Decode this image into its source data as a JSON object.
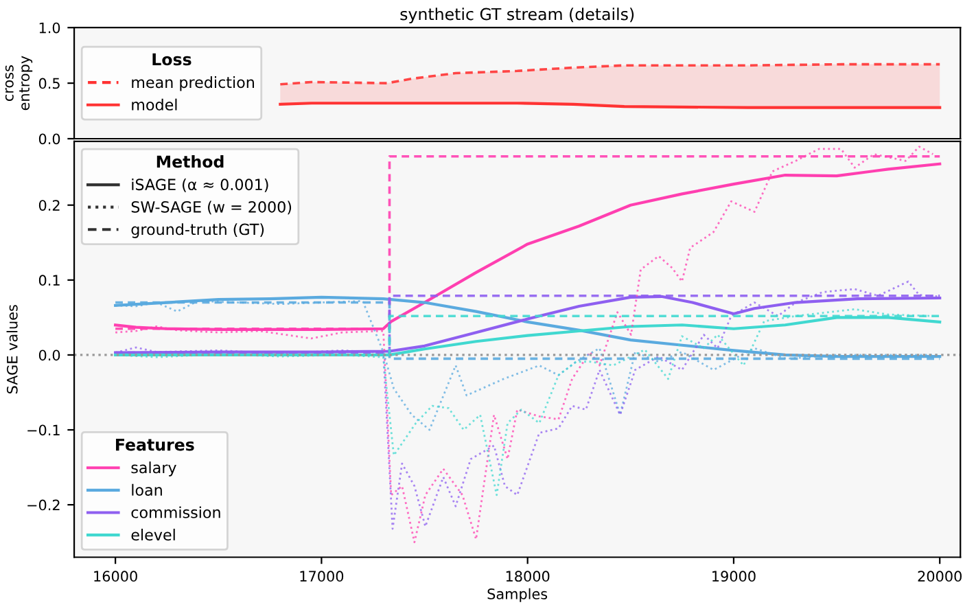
{
  "chart_data": [
    {
      "type": "line",
      "title": "synthetic GT stream (details)",
      "ylabel": "cross\nentropy",
      "legend_title": [
        "Loss"
      ],
      "legend": [
        "left"
      ],
      "tick_labels": "y",
      "xlim": [
        15800,
        20100
      ],
      "ylim": [
        0,
        1
      ],
      "yticks": [
        {
          "value": 0,
          "label": "0.0"
        },
        {
          "value": 0.5,
          "label": "0.5"
        },
        {
          "value": 1,
          "label": "1.0"
        }
      ],
      "series": [
        {
          "name": "mean prediction",
          "color": "#ff3333",
          "line_style": "dashed",
          "x": [
            16800,
            16952,
            17318,
            17438,
            17651,
            17950,
            18223,
            18469,
            19068,
            19527,
            20000
          ],
          "values": [
            0.49,
            0.51,
            0.5,
            0.54,
            0.59,
            0.61,
            0.64,
            0.66,
            0.66,
            0.67,
            0.67
          ]
        },
        {
          "name": "model",
          "color": "#ff3333",
          "line_style": "solid",
          "x": [
            16800,
            16952,
            17318,
            17438,
            17651,
            17950,
            18223,
            18469,
            19068,
            19527,
            20000
          ],
          "values": [
            0.31,
            0.32,
            0.32,
            0.32,
            0.32,
            0.32,
            0.31,
            0.29,
            0.28,
            0.28,
            0.28
          ],
          "lower": [
            0.31,
            0.32,
            0.32,
            0.32,
            0.32,
            0.32,
            0.31,
            0.29,
            0.28,
            0.28,
            0.28
          ],
          "upper": [
            0.49,
            0.51,
            0.5,
            0.54,
            0.59,
            0.61,
            0.64,
            0.66,
            0.66,
            0.67,
            0.67
          ]
        }
      ]
    },
    {
      "type": "line",
      "xlabel": "Samples",
      "ylabel": "SAGE values",
      "legend_title": [
        "Method",
        "Features"
      ],
      "legend": [
        "top left",
        "bottom left"
      ],
      "xlim": [
        15800,
        20100
      ],
      "xticks": [
        16000,
        17000,
        18000,
        19000,
        20000
      ],
      "ylim": [
        -0.27,
        0.285
      ],
      "yticks": [
        {
          "value": -0.2,
          "label": "−0.2"
        },
        {
          "value": -0.1,
          "label": "−0.1"
        },
        {
          "value": 0,
          "label": "0.0"
        },
        {
          "value": 0.1,
          "label": "0.1"
        },
        {
          "value": 0.2,
          "label": "0.2"
        }
      ],
      "ref_lines": [
        {
          "axis": "y",
          "value": 0,
          "color": "#999999",
          "line_style": "dotted"
        }
      ],
      "series": [
        {
          "name": "iSAGE (α ≈ 0.001)",
          "color": "#333333",
          "line_style": "solid"
        },
        {
          "name": "SW-SAGE (w = 2000)",
          "color": "#333333",
          "line_style": "dotted"
        },
        {
          "name": "ground-truth (GT)",
          "color": "#333333",
          "line_style": "dashed"
        },
        {
          "name": "salary",
          "color": "#ff3fb0",
          "line_style": "solid",
          "x": [
            16000,
            16100,
            16250,
            16500,
            16750,
            17000,
            17300,
            17340,
            17500,
            17750,
            18000,
            18250,
            18500,
            18750,
            19000,
            19250,
            19500,
            19750,
            20000
          ],
          "values": [
            0.04,
            0.037,
            0.035,
            0.034,
            0.034,
            0.034,
            0.035,
            0.045,
            0.07,
            0.11,
            0.148,
            0.172,
            0.2,
            0.215,
            0.228,
            0.24,
            0.239,
            0.248,
            0.255
          ]
        },
        {
          "name": "loan",
          "color": "#5aaadf",
          "line_style": "solid",
          "x": [
            16000,
            16250,
            16500,
            16750,
            17000,
            17300,
            17500,
            17750,
            18000,
            18250,
            18500,
            18750,
            19000,
            19250,
            19500,
            20000
          ],
          "values": [
            0.066,
            0.07,
            0.074,
            0.075,
            0.077,
            0.075,
            0.07,
            0.058,
            0.044,
            0.033,
            0.02,
            0.013,
            0.006,
            0.0,
            -0.002,
            -0.002
          ]
        },
        {
          "name": "commission",
          "color": "#8e5ff0",
          "line_style": "solid",
          "x": [
            16000,
            16500,
            17000,
            17330,
            17500,
            17750,
            18000,
            18250,
            18500,
            18650,
            18800,
            19000,
            19100,
            19300,
            19600,
            20000
          ],
          "values": [
            0.003,
            0.004,
            0.004,
            0.005,
            0.012,
            0.03,
            0.048,
            0.065,
            0.077,
            0.078,
            0.07,
            0.055,
            0.062,
            0.07,
            0.075,
            0.076
          ]
        },
        {
          "name": "elevel",
          "color": "#40d8d0",
          "line_style": "solid",
          "x": [
            16000,
            16500,
            17000,
            17330,
            17500,
            17750,
            18000,
            18250,
            18500,
            18750,
            19000,
            19250,
            19500,
            19750,
            20000
          ],
          "values": [
            0.0,
            0.0,
            0.0,
            0.0,
            0.008,
            0.018,
            0.026,
            0.032,
            0.038,
            0.04,
            0.035,
            0.04,
            0.05,
            0.05,
            0.044
          ]
        },
        {
          "color": "#ff3fb0",
          "line_style": "dotted",
          "x": [
            16000,
            16100,
            16200,
            16300,
            16500,
            16700,
            16950,
            17100,
            17300,
            17338,
            17391,
            17451,
            17504,
            17591,
            17684,
            17750,
            17837,
            17903,
            17950,
            18057,
            18150,
            18216,
            18303,
            18349,
            18436,
            18502,
            18549,
            18636,
            18702,
            18749,
            18789,
            18902,
            18988,
            19101,
            19188,
            19301,
            19414,
            19521,
            19587,
            19681,
            19834,
            19900,
            19967
          ],
          "values": [
            0.03,
            0.032,
            0.038,
            0.033,
            0.03,
            0.032,
            0.022,
            0.03,
            0.032,
            -0.187,
            -0.175,
            -0.25,
            -0.187,
            -0.152,
            -0.187,
            -0.246,
            -0.08,
            -0.139,
            -0.073,
            -0.082,
            -0.086,
            -0.032,
            0.004,
            -0.014,
            0.057,
            0.027,
            0.114,
            0.132,
            0.116,
            0.098,
            0.143,
            0.164,
            0.205,
            0.191,
            0.245,
            0.259,
            0.275,
            0.275,
            0.25,
            0.268,
            0.259,
            0.278,
            0.268
          ]
        },
        {
          "color": "#5aaadf",
          "line_style": "dotted",
          "x": [
            16000,
            16100,
            16200,
            16300,
            16400,
            16600,
            16800,
            17000,
            17200,
            17300,
            17351,
            17438,
            17524,
            17651,
            17704,
            17884,
            18057,
            18150,
            18236,
            18349,
            18449,
            18522,
            18636,
            18749,
            18902,
            19100,
            19255,
            19500,
            20000
          ],
          "values": [
            0.066,
            0.065,
            0.07,
            0.058,
            0.072,
            0.07,
            0.068,
            0.07,
            0.072,
            0.004,
            -0.045,
            -0.08,
            -0.1,
            -0.014,
            -0.054,
            -0.032,
            -0.014,
            -0.027,
            -0.009,
            0.009,
            -0.08,
            0.004,
            -0.009,
            0.004,
            -0.02,
            0.009,
            -0.005,
            0.0,
            0.0
          ]
        },
        {
          "color": "#8e5ff0",
          "line_style": "dotted",
          "x": [
            16000,
            16100,
            16200,
            16500,
            16800,
            17100,
            17300,
            17345,
            17391,
            17451,
            17504,
            17591,
            17651,
            17724,
            17837,
            17890,
            17950,
            18057,
            18150,
            18216,
            18283,
            18349,
            18449,
            18522,
            18636,
            18749,
            18855,
            18922,
            18988,
            19101,
            19215,
            19301,
            19434,
            19587,
            19700,
            19847,
            19900,
            20000
          ],
          "values": [
            0.003,
            0.01,
            0.004,
            0.006,
            0.002,
            0.006,
            0.003,
            -0.232,
            -0.145,
            -0.175,
            -0.229,
            -0.163,
            -0.202,
            -0.139,
            -0.121,
            -0.175,
            -0.187,
            -0.104,
            -0.098,
            -0.068,
            -0.073,
            -0.02,
            -0.08,
            -0.02,
            -0.002,
            -0.02,
            0.027,
            0.009,
            0.052,
            0.07,
            0.052,
            0.07,
            0.084,
            0.088,
            0.079,
            0.098,
            0.08,
            0.078
          ]
        },
        {
          "color": "#40d8d0",
          "line_style": "dotted",
          "x": [
            16000,
            16200,
            16500,
            16800,
            17100,
            17300,
            17351,
            17458,
            17537,
            17617,
            17690,
            17770,
            17850,
            17903,
            17970,
            18057,
            18150,
            18236,
            18303,
            18416,
            18502,
            18569,
            18682,
            18749,
            18855,
            18922,
            19048,
            19148,
            19301,
            19587,
            19747,
            19967
          ],
          "values": [
            0.0,
            -0.003,
            0.001,
            -0.002,
            0.0,
            -0.003,
            -0.134,
            -0.091,
            -0.068,
            -0.071,
            -0.1,
            -0.08,
            -0.187,
            -0.091,
            -0.073,
            -0.091,
            -0.027,
            -0.009,
            -0.009,
            -0.014,
            -0.002,
            0.007,
            -0.032,
            0.025,
            0.009,
            0.027,
            -0.014,
            0.045,
            0.052,
            0.061,
            0.054,
            0.052
          ]
        },
        {
          "color": "#ff3fb0",
          "line_style": "dashed",
          "x": [
            16000,
            17330,
            17330,
            20000
          ],
          "values": [
            0.035,
            0.035,
            0.265,
            0.265
          ]
        },
        {
          "color": "#5aaadf",
          "line_style": "dashed",
          "x": [
            16000,
            17330,
            17330,
            20000
          ],
          "values": [
            0.07,
            0.07,
            -0.005,
            -0.005
          ]
        },
        {
          "color": "#8e5ff0",
          "line_style": "dashed",
          "x": [
            16000,
            17330,
            17330,
            20000
          ],
          "values": [
            0.003,
            0.003,
            0.079,
            0.079
          ]
        },
        {
          "color": "#40d8d0",
          "line_style": "dashed",
          "x": [
            16000,
            17330,
            17330,
            20000
          ],
          "values": [
            0.0,
            0.0,
            0.052,
            0.052
          ]
        }
      ]
    }
  ]
}
